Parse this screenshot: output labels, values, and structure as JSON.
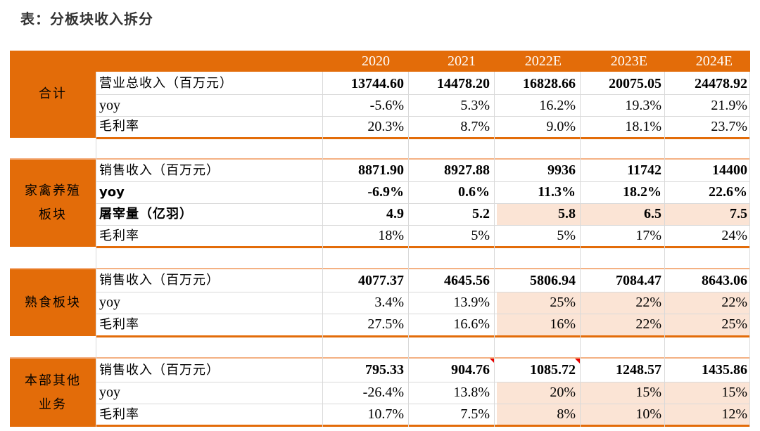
{
  "title": "表：分板块收入拆分",
  "columns": [
    "2020",
    "2021",
    "2022E",
    "2023E",
    "2024E"
  ],
  "sections": [
    {
      "label_lines": [
        "合计"
      ],
      "rows": [
        {
          "label": "营业总收入（百万元）",
          "values": [
            "13744.60",
            "14478.20",
            "16828.66",
            "20075.05",
            "24478.92"
          ]
        },
        {
          "label": "yoy",
          "values": [
            "-5.6%",
            "5.3%",
            "16.2%",
            "19.3%",
            "21.9%"
          ]
        },
        {
          "label": "毛利率",
          "values": [
            "20.3%",
            "8.7%",
            "9.0%",
            "18.1%",
            "23.7%"
          ]
        }
      ]
    },
    {
      "label_lines": [
        "家禽养殖",
        "板块"
      ],
      "rows": [
        {
          "label": "销售收入（百万元）",
          "values": [
            "8871.90",
            "8927.88",
            "9936",
            "11742",
            "14400"
          ]
        },
        {
          "label": "yoy",
          "values": [
            "-6.9%",
            "0.6%",
            "11.3%",
            "18.2%",
            "22.6%"
          ]
        },
        {
          "label": "屠宰量（亿羽）",
          "values": [
            "4.9",
            "5.2",
            "5.8",
            "6.5",
            "7.5"
          ]
        },
        {
          "label": "毛利率",
          "values": [
            "18%",
            "5%",
            "5%",
            "17%",
            "24%"
          ]
        }
      ]
    },
    {
      "label_lines": [
        "熟食板块"
      ],
      "rows": [
        {
          "label": "销售收入（百万元）",
          "values": [
            "4077.37",
            "4645.56",
            "5806.94",
            "7084.47",
            "8643.06"
          ]
        },
        {
          "label": "yoy",
          "values": [
            "3.4%",
            "13.9%",
            "25%",
            "22%",
            "22%"
          ]
        },
        {
          "label": "毛利率",
          "values": [
            "27.5%",
            "16.6%",
            "16%",
            "22%",
            "25%"
          ]
        }
      ]
    },
    {
      "label_lines": [
        "本部其他",
        "业务"
      ],
      "rows": [
        {
          "label": "销售收入（百万元）",
          "values": [
            "795.33",
            "904.76",
            "1085.72",
            "1248.57",
            "1435.86"
          ]
        },
        {
          "label": "yoy",
          "values": [
            "-26.4%",
            "13.8%",
            "20%",
            "15%",
            "15%"
          ]
        },
        {
          "label": "毛利率",
          "values": [
            "10.7%",
            "7.5%",
            "8%",
            "10%",
            "12%"
          ]
        }
      ]
    }
  ],
  "colors": {
    "accent": "#E36C09",
    "highlight": "#FBE4D5",
    "comment_marker": "#e60000"
  }
}
